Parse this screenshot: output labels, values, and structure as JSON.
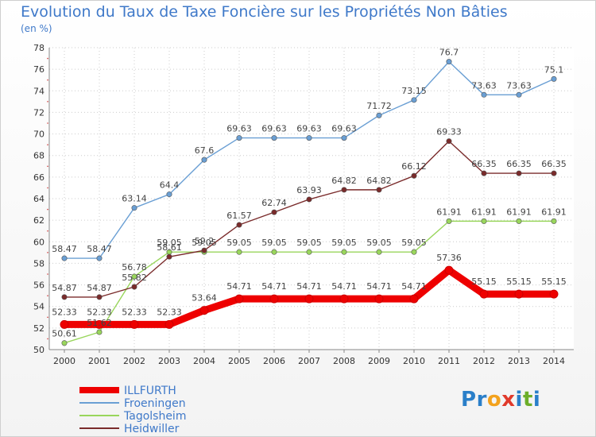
{
  "title": "Evolution du Taux de Taxe Foncière sur les Propriétés Non Bâties",
  "subtitle": "(en %)",
  "logo": {
    "text": "Proxiti",
    "letters": [
      {
        "ch": "P",
        "color": "#2a7fc9"
      },
      {
        "ch": "r",
        "color": "#2a7fc9"
      },
      {
        "ch": "o",
        "color": "#f3a21d"
      },
      {
        "ch": "x",
        "color": "#e03a2b"
      },
      {
        "ch": "i",
        "color": "#2a7fc9"
      },
      {
        "ch": "t",
        "color": "#6cae2a"
      },
      {
        "ch": "i",
        "color": "#2a7fc9"
      }
    ]
  },
  "chart_data": {
    "type": "line",
    "title": "Evolution du Taux de Taxe Foncière sur les Propriétés Non Bâties",
    "xlabel": "",
    "ylabel": "(en %)",
    "ylim": [
      50,
      78
    ],
    "yticks": [
      50,
      52,
      54,
      56,
      58,
      60,
      62,
      64,
      66,
      68,
      70,
      72,
      74,
      76,
      78
    ],
    "grid": true,
    "legend_position": "bottom-left",
    "x": [
      "2000",
      "2001",
      "2002",
      "2003",
      "2004",
      "2005",
      "2006",
      "2007",
      "2008",
      "2009",
      "2010",
      "2011",
      "2012",
      "2013",
      "2014"
    ],
    "series": [
      {
        "name": "ILLFURTH",
        "color": "#ee0000",
        "thick": true,
        "values": [
          52.33,
          52.33,
          52.33,
          52.33,
          53.64,
          54.71,
          54.71,
          54.71,
          54.71,
          54.71,
          54.71,
          57.36,
          55.15,
          55.15,
          55.15
        ],
        "labels": [
          "52.33",
          "52.33",
          "52.33",
          "52.33",
          "53.64",
          "54.71",
          "54.71",
          "54.71",
          "54.71",
          "54.71",
          "54.71",
          "57.36",
          "55.15",
          "55.15",
          "55.15"
        ]
      },
      {
        "name": "Froeningen",
        "color": "#6a9fd4",
        "thick": false,
        "values": [
          58.47,
          58.47,
          63.14,
          64.4,
          67.6,
          69.63,
          69.63,
          69.63,
          69.63,
          71.72,
          73.15,
          76.7,
          73.63,
          73.63,
          75.1
        ],
        "labels": [
          "58.47",
          "58.47",
          "63.14",
          "64.4",
          "67.6",
          "69.63",
          "69.63",
          "69.63",
          "69.63",
          "71.72",
          "73.15",
          "76.7",
          "73.63",
          "73.63",
          "75.1"
        ]
      },
      {
        "name": "Tagolsheim",
        "color": "#99d65c",
        "thick": false,
        "values": [
          50.61,
          51.62,
          56.78,
          59.05,
          59.05,
          59.05,
          59.05,
          59.05,
          59.05,
          59.05,
          59.05,
          61.91,
          61.91,
          61.91,
          61.91
        ],
        "labels": [
          "50.61",
          "51.62",
          "56.78",
          "59.05",
          "59.05",
          "59.05",
          "59.05",
          "59.05",
          "59.05",
          "59.05",
          "59.05",
          "61.91",
          "61.91",
          "61.91",
          "61.91"
        ]
      },
      {
        "name": "Heidwiller",
        "color": "#7a2b2b",
        "thick": false,
        "values": [
          54.87,
          54.87,
          55.82,
          58.61,
          59.2,
          61.57,
          62.74,
          63.93,
          64.82,
          64.82,
          66.12,
          69.33,
          66.35,
          66.35,
          66.35
        ],
        "labels": [
          "54.87",
          "54.87",
          "55.82",
          "58.61",
          "59.2",
          "61.57",
          "62.74",
          "63.93",
          "64.82",
          "64.82",
          "66.12",
          "69.33",
          "66.35",
          "66.35",
          "66.35"
        ]
      }
    ]
  }
}
